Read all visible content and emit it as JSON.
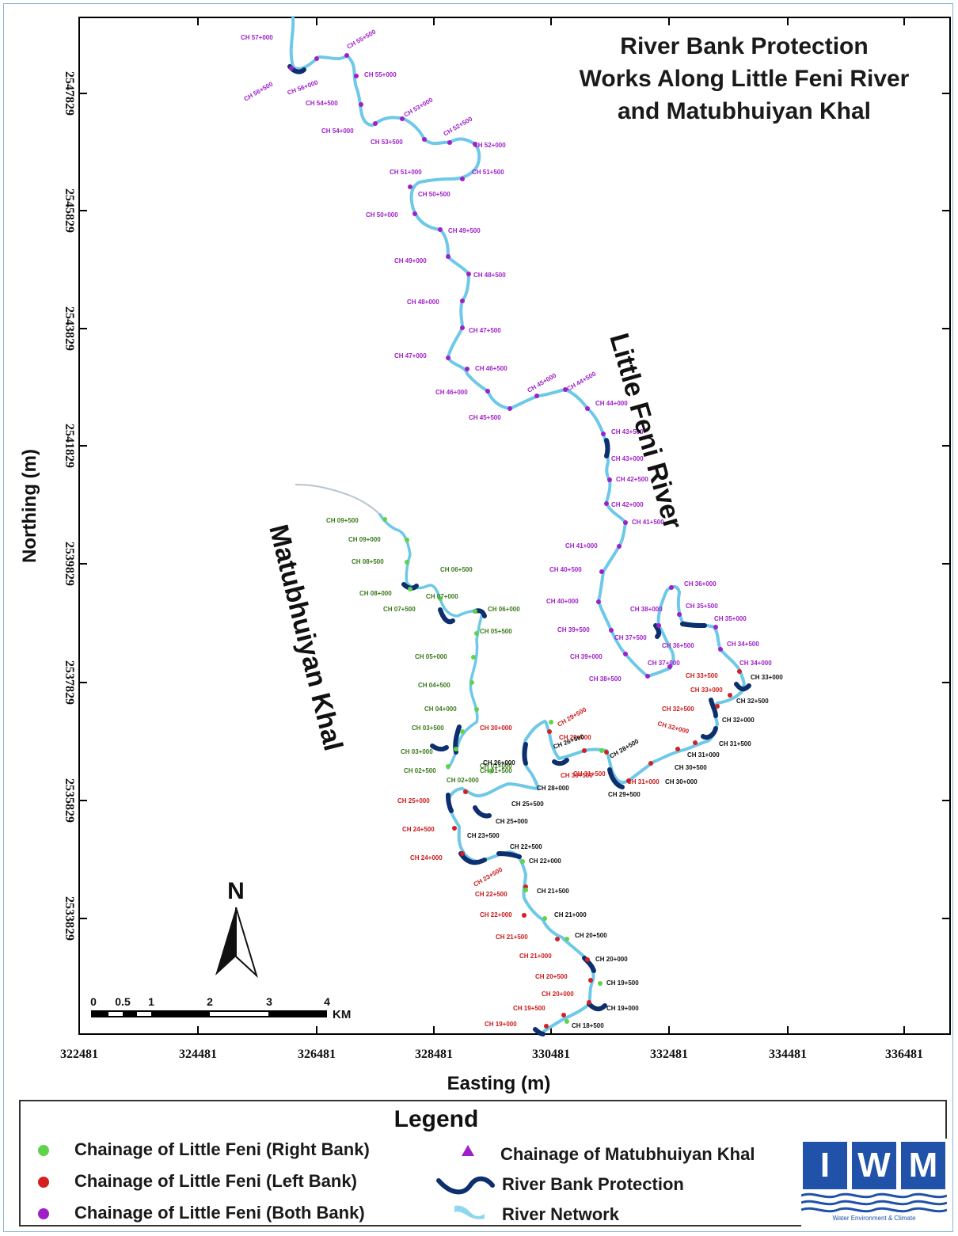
{
  "title": {
    "line1": "River Bank Protection",
    "line2": "Works Along Little Feni River",
    "line3": "and Matubhuiyan Khal"
  },
  "axes": {
    "xlabel": "Easting (m)",
    "ylabel": "Northing (m)",
    "x_ticks": [
      "322481",
      "324481",
      "326481",
      "328481",
      "330481",
      "332481",
      "334481",
      "336481"
    ],
    "y_ticks": [
      "2547829",
      "2545829",
      "2543829",
      "2541829",
      "2539829",
      "2537829",
      "2535829",
      "2533829"
    ]
  },
  "river_labels": {
    "little_feni": "Little Feni River",
    "matubhuiyan": "Matubhuiyan Khal"
  },
  "north_arrow": {
    "label": "N"
  },
  "scale_bar": {
    "ticks": [
      "0",
      "0.5",
      "1",
      "2",
      "3",
      "4"
    ],
    "unit": "KM"
  },
  "colors": {
    "right_bank": "#5fd34a",
    "left_bank": "#d42020",
    "both_bank": "#a020c8",
    "khal": "#a020c8",
    "protection": "#0d2f6e",
    "river": "#6ec8e8",
    "label_purple": "#a020c8",
    "label_red": "#cc1a1a",
    "label_green": "#3a7a1a",
    "label_black": "#111111"
  },
  "chainage_labels": {
    "purple": [
      "CH 57+000",
      "CH 56+500",
      "CH 56+000",
      "CH 55+500",
      "CH 55+000",
      "CH 54+500",
      "CH 54+000",
      "CH 53+500",
      "CH 53+000",
      "CH 52+500",
      "CH 52+000",
      "CH 51+500",
      "CH 51+000",
      "CH 50+500",
      "CH 50+000",
      "CH 49+500",
      "CH 49+000",
      "CH 48+500",
      "CH 48+000",
      "CH 47+500",
      "CH 47+000",
      "CH 46+500",
      "CH 46+000",
      "CH 45+500",
      "CH 45+000",
      "CH 44+500",
      "CH 44+000",
      "CH 43+500",
      "CH 43+000",
      "CH 42+500",
      "CH 42+000",
      "CH 41+500",
      "CH 41+000",
      "CH 40+500",
      "CH 40+000",
      "CH 39+500",
      "CH 39+000",
      "CH 38+500",
      "CH 38+000",
      "CH 37+500",
      "CH 37+000",
      "CH 36+500",
      "CH 36+000",
      "CH 35+500",
      "CH 35+000",
      "CH 34+500",
      "CH 34+000"
    ],
    "red": [
      "CH 33+500",
      "CH 33+000",
      "CH 32+500",
      "CH 32+000",
      "CH 31+500",
      "CH 31+000",
      "CH 30+500",
      "CH 30+000",
      "CH 29+500",
      "CH 29+000",
      "CH 25+000",
      "CH 24+500",
      "CH 24+000",
      "CH 23+500",
      "CH 22+500",
      "CH 22+000",
      "CH 21+500",
      "CH 21+000",
      "CH 20+500",
      "CH 20+000",
      "CH 19+500",
      "CH 19+000"
    ],
    "green": [
      "CH 09+500",
      "CH 09+000",
      "CH 08+500",
      "CH 08+000",
      "CH 07+500",
      "CH 07+000",
      "CH 06+500",
      "CH 06+000",
      "CH 05+500",
      "CH 05+000",
      "CH 04+500",
      "CH 04+000",
      "CH 03+500",
      "CH 03+000",
      "CH 02+500",
      "CH 02+000",
      "CH 01+500",
      "CH 01+000"
    ],
    "black": [
      "CH 33+000",
      "CH 32+500",
      "CH 32+000",
      "CH 31+500",
      "CH 31+000",
      "CH 30+500",
      "CH 30+000",
      "CH 29+500",
      "CH 28+500",
      "CH 28+000",
      "CH 26+500",
      "CH 26+000",
      "CH 25+500",
      "CH 25+000",
      "CH 23+500",
      "CH 22+500",
      "CH 22+000",
      "CH 21+500",
      "CH 21+000",
      "CH 20+500",
      "CH 20+000",
      "CH 19+500",
      "CH 19+000",
      "CH 18+500"
    ]
  },
  "legend": {
    "title": "Legend",
    "items": [
      {
        "label": "Chainage of Little Feni (Right Bank)",
        "symbol": "green-dot"
      },
      {
        "label": "Chainage of Little Feni (Left Bank)",
        "symbol": "red-dot"
      },
      {
        "label": "Chainage of Little Feni (Both Bank)",
        "symbol": "purple-dot"
      },
      {
        "label": "Chainage of Matubhuiyan Khal",
        "symbol": "purple-triangle"
      },
      {
        "label": "River Bank Protection",
        "symbol": "dark-blue-curve"
      },
      {
        "label": "River Network",
        "symbol": "light-blue-river"
      }
    ]
  },
  "logo": {
    "letters": [
      "I",
      "W",
      "M"
    ],
    "tagline": "Water Environment & Climate"
  }
}
